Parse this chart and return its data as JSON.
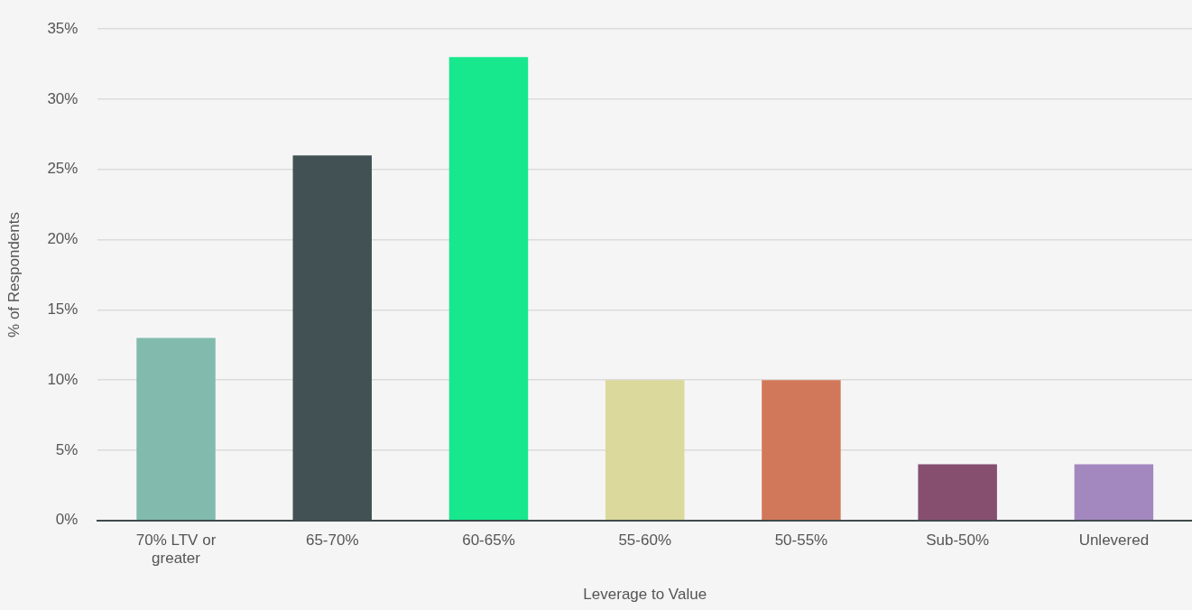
{
  "chart_data": {
    "type": "bar",
    "xlabel": "Leverage to Value",
    "ylabel": "% of Respondents",
    "categories": [
      "70% LTV or greater",
      "65-70%",
      "60-65%",
      "55-60%",
      "50-55%",
      "Sub-50%",
      "Unlevered"
    ],
    "values": [
      13,
      26,
      33,
      10,
      10,
      4,
      4
    ],
    "colors": [
      "#82bbad",
      "#425154",
      "#17e78d",
      "#dbd99b",
      "#d2785a",
      "#864f70",
      "#a388c0"
    ],
    "ylim": [
      0,
      35
    ],
    "yticks": [
      {
        "value": 0,
        "label": "0%"
      },
      {
        "value": 5,
        "label": "5%"
      },
      {
        "value": 10,
        "label": "10%"
      },
      {
        "value": 15,
        "label": "15%"
      },
      {
        "value": 20,
        "label": "20%"
      },
      {
        "value": 25,
        "label": "25%"
      },
      {
        "value": 30,
        "label": "30%"
      },
      {
        "value": 35,
        "label": "35%"
      }
    ],
    "grid": "y",
    "legend": false
  }
}
